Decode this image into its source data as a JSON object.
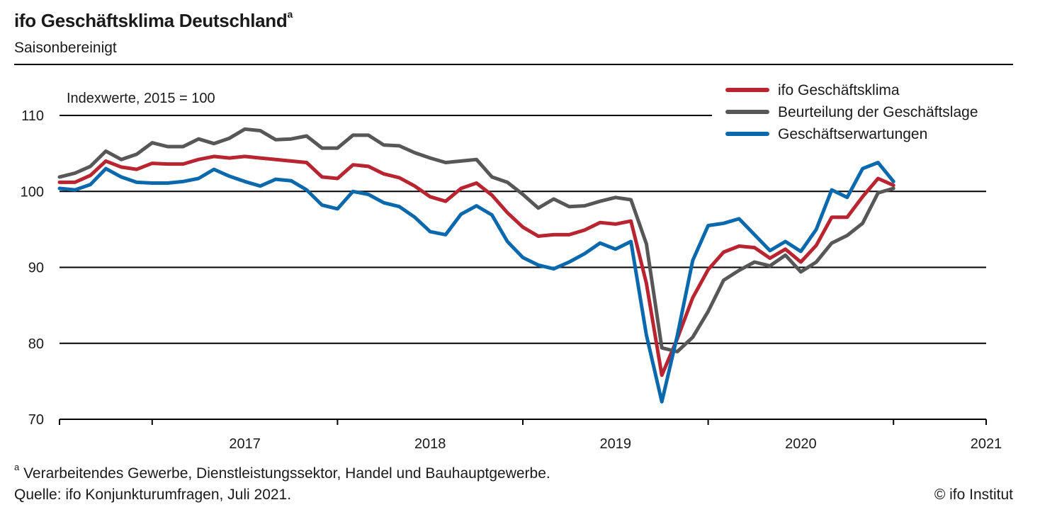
{
  "header": {
    "title": "ifo Geschäftsklima Deutschland",
    "title_sup": "a",
    "subtitle": "Saisonbereinigt"
  },
  "footer": {
    "note_marker": "a",
    "note": "Verarbeitendes Gewerbe, Dienstleistungssektor, Handel und Bauhauptgewerbe.",
    "source": "Quelle: ifo Konjunkturumfragen, Juli 2021.",
    "copyright": "© ifo Institut"
  },
  "chart_data": {
    "type": "line",
    "unit_label": "Indexwerte, 2015 = 100",
    "ylim": [
      70,
      110
    ],
    "yticks": [
      70,
      80,
      90,
      100,
      110
    ],
    "x_start": "2016-07",
    "x_end": "2021-07",
    "x_year_labels": [
      "2017",
      "2018",
      "2019",
      "2020",
      "2021"
    ],
    "legend_position": "top-right",
    "grid": "horizontal",
    "series": [
      {
        "name": "ifo Geschäftsklima",
        "color": "#b8242f",
        "values": [
          101.2,
          101.2,
          102.1,
          104.0,
          103.2,
          102.9,
          103.7,
          103.6,
          103.6,
          104.2,
          104.6,
          104.4,
          104.6,
          104.4,
          104.2,
          104.0,
          103.8,
          101.9,
          101.7,
          103.5,
          103.3,
          102.3,
          101.8,
          100.7,
          99.3,
          98.7,
          100.4,
          101.1,
          99.5,
          97.2,
          95.3,
          94.1,
          94.3,
          94.3,
          94.9,
          95.9,
          95.7,
          96.1,
          87.9,
          75.8,
          80.6,
          86.0,
          89.7,
          92.0,
          92.8,
          92.6,
          91.2,
          92.4,
          90.7,
          92.9,
          96.6,
          96.6,
          99.3,
          101.7,
          100.8
        ]
      },
      {
        "name": "Beurteilung der Geschäftslage",
        "color": "#575757",
        "values": [
          101.9,
          102.4,
          103.3,
          105.3,
          104.2,
          104.9,
          106.4,
          105.9,
          105.9,
          106.9,
          106.3,
          107.0,
          108.2,
          108.0,
          106.8,
          106.9,
          107.3,
          105.7,
          105.7,
          107.4,
          107.4,
          106.1,
          106.0,
          105.1,
          104.4,
          103.8,
          104.0,
          104.2,
          101.9,
          101.2,
          99.6,
          97.8,
          99.0,
          98.0,
          98.1,
          98.7,
          99.2,
          98.9,
          93.1,
          79.4,
          78.9,
          80.8,
          84.2,
          88.3,
          89.6,
          90.7,
          90.2,
          91.6,
          89.4,
          90.7,
          93.2,
          94.2,
          95.8,
          99.8,
          100.4
        ]
      },
      {
        "name": "Geschäftserwartungen",
        "color": "#0a68ad",
        "values": [
          100.4,
          100.2,
          100.9,
          103.0,
          101.9,
          101.2,
          101.1,
          101.1,
          101.3,
          101.7,
          102.9,
          102.0,
          101.3,
          100.7,
          101.6,
          101.4,
          100.2,
          98.2,
          97.7,
          100.0,
          99.6,
          98.5,
          98.0,
          96.6,
          94.7,
          94.3,
          97.0,
          98.1,
          96.9,
          93.4,
          91.3,
          90.3,
          89.8,
          90.7,
          91.8,
          93.2,
          92.4,
          93.4,
          81.1,
          72.3,
          81.0,
          90.9,
          95.5,
          95.8,
          96.4,
          94.3,
          92.2,
          93.4,
          92.1,
          95.0,
          100.2,
          99.2,
          103.0,
          103.8,
          101.3
        ]
      }
    ]
  }
}
